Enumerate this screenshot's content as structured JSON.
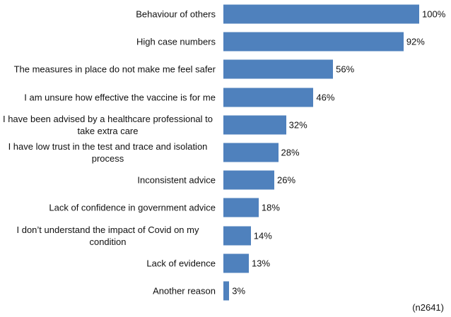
{
  "chart_data": {
    "type": "bar",
    "orientation": "horizontal",
    "categories": [
      "Behaviour of others",
      "High case numbers",
      "The measures in place do not make me feel safer",
      "I am unsure how effective the vaccine is for me",
      "I have been advised by a healthcare professional to take extra care",
      "I have low trust in the test and trace and isolation process",
      "Inconsistent advice",
      "Lack of confidence in government advice",
      "I don’t understand the impact of Covid on my condition",
      "Lack of evidence",
      "Another reason"
    ],
    "values": [
      100,
      92,
      56,
      46,
      32,
      28,
      26,
      18,
      14,
      13,
      3
    ],
    "value_labels": [
      "100%",
      "92%",
      "56%",
      "46%",
      "32%",
      "28%",
      "26%",
      "18%",
      "14%",
      "13%",
      "3%"
    ],
    "color": "#4f81bd",
    "annotation": "(n2641)"
  }
}
